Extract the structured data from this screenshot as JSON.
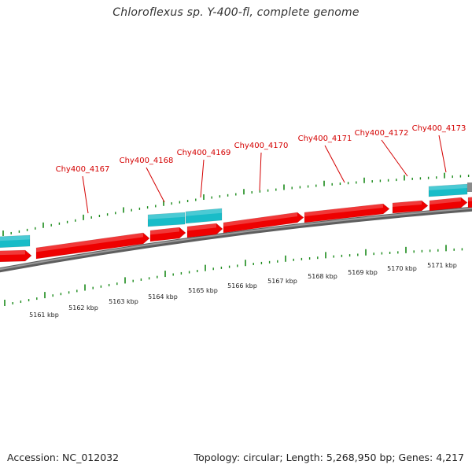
{
  "title": "Chloroflexus sp. Y-400-fl, complete genome",
  "footer": {
    "accession": "Accession: NC_012032",
    "summary": "Topology: circular; Length: 5,268,950 bp; Genes: 4,217"
  },
  "colors": {
    "gene_forward": "#ee0000",
    "gene_other": "#19bcc8",
    "backbone": "#7a7a7a",
    "tick": "#1a8a1a",
    "label": "#d40000"
  },
  "gene_labels": [
    {
      "text": "Chy400_4167"
    },
    {
      "text": "Chy400_4168"
    },
    {
      "text": "Chy400_4169"
    },
    {
      "text": "Chy400_4170"
    },
    {
      "text": "Chy400_4171"
    },
    {
      "text": "Chy400_4172"
    },
    {
      "text": "Chy400_4173"
    }
  ],
  "kbp_labels": [
    {
      "text": "5161 kbp"
    },
    {
      "text": "5162 kbp"
    },
    {
      "text": "5163 kbp"
    },
    {
      "text": "5164 kbp"
    },
    {
      "text": "5165 kbp"
    },
    {
      "text": "5166 kbp"
    },
    {
      "text": "5167 kbp"
    },
    {
      "text": "5168 kbp"
    },
    {
      "text": "5169 kbp"
    },
    {
      "text": "5170 kbp"
    },
    {
      "text": "5171 kbp"
    }
  ]
}
